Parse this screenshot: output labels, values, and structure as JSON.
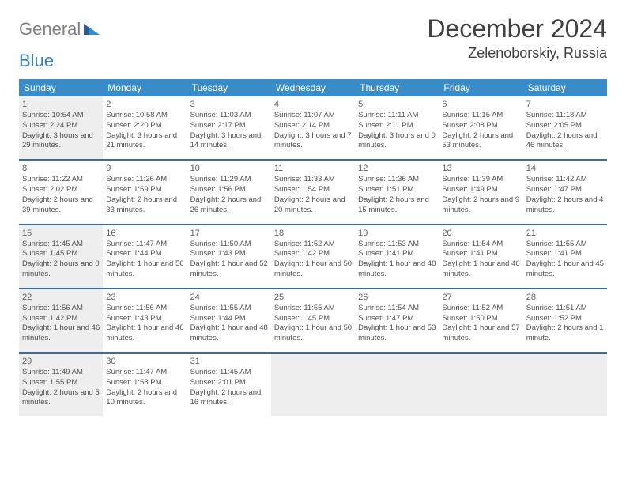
{
  "logo": {
    "general": "General",
    "blue": "Blue"
  },
  "title": "December 2024",
  "location": "Zelenoborskiy, Russia",
  "colors": {
    "header_bg": "#3a8cc9",
    "header_text": "#ffffff",
    "week_border": "#3a6a9e",
    "shaded_cell": "#eeeeee",
    "text": "#505050",
    "logo_general": "#808080",
    "logo_blue": "#3a7ec4"
  },
  "day_headers": [
    "Sunday",
    "Monday",
    "Tuesday",
    "Wednesday",
    "Thursday",
    "Friday",
    "Saturday"
  ],
  "weeks": [
    [
      {
        "n": "1",
        "shaded": true,
        "sr": "Sunrise: 10:54 AM",
        "ss": "Sunset: 2:24 PM",
        "dl": "Daylight: 3 hours and 29 minutes."
      },
      {
        "n": "2",
        "shaded": false,
        "sr": "Sunrise: 10:58 AM",
        "ss": "Sunset: 2:20 PM",
        "dl": "Daylight: 3 hours and 21 minutes."
      },
      {
        "n": "3",
        "shaded": false,
        "sr": "Sunrise: 11:03 AM",
        "ss": "Sunset: 2:17 PM",
        "dl": "Daylight: 3 hours and 14 minutes."
      },
      {
        "n": "4",
        "shaded": false,
        "sr": "Sunrise: 11:07 AM",
        "ss": "Sunset: 2:14 PM",
        "dl": "Daylight: 3 hours and 7 minutes."
      },
      {
        "n": "5",
        "shaded": false,
        "sr": "Sunrise: 11:11 AM",
        "ss": "Sunset: 2:11 PM",
        "dl": "Daylight: 3 hours and 0 minutes."
      },
      {
        "n": "6",
        "shaded": false,
        "sr": "Sunrise: 11:15 AM",
        "ss": "Sunset: 2:08 PM",
        "dl": "Daylight: 2 hours and 53 minutes."
      },
      {
        "n": "7",
        "shaded": false,
        "sr": "Sunrise: 11:18 AM",
        "ss": "Sunset: 2:05 PM",
        "dl": "Daylight: 2 hours and 46 minutes."
      }
    ],
    [
      {
        "n": "8",
        "shaded": false,
        "sr": "Sunrise: 11:22 AM",
        "ss": "Sunset: 2:02 PM",
        "dl": "Daylight: 2 hours and 39 minutes."
      },
      {
        "n": "9",
        "shaded": false,
        "sr": "Sunrise: 11:26 AM",
        "ss": "Sunset: 1:59 PM",
        "dl": "Daylight: 2 hours and 33 minutes."
      },
      {
        "n": "10",
        "shaded": false,
        "sr": "Sunrise: 11:29 AM",
        "ss": "Sunset: 1:56 PM",
        "dl": "Daylight: 2 hours and 26 minutes."
      },
      {
        "n": "11",
        "shaded": false,
        "sr": "Sunrise: 11:33 AM",
        "ss": "Sunset: 1:54 PM",
        "dl": "Daylight: 2 hours and 20 minutes."
      },
      {
        "n": "12",
        "shaded": false,
        "sr": "Sunrise: 11:36 AM",
        "ss": "Sunset: 1:51 PM",
        "dl": "Daylight: 2 hours and 15 minutes."
      },
      {
        "n": "13",
        "shaded": false,
        "sr": "Sunrise: 11:39 AM",
        "ss": "Sunset: 1:49 PM",
        "dl": "Daylight: 2 hours and 9 minutes."
      },
      {
        "n": "14",
        "shaded": false,
        "sr": "Sunrise: 11:42 AM",
        "ss": "Sunset: 1:47 PM",
        "dl": "Daylight: 2 hours and 4 minutes."
      }
    ],
    [
      {
        "n": "15",
        "shaded": true,
        "sr": "Sunrise: 11:45 AM",
        "ss": "Sunset: 1:45 PM",
        "dl": "Daylight: 2 hours and 0 minutes."
      },
      {
        "n": "16",
        "shaded": false,
        "sr": "Sunrise: 11:47 AM",
        "ss": "Sunset: 1:44 PM",
        "dl": "Daylight: 1 hour and 56 minutes."
      },
      {
        "n": "17",
        "shaded": false,
        "sr": "Sunrise: 11:50 AM",
        "ss": "Sunset: 1:43 PM",
        "dl": "Daylight: 1 hour and 52 minutes."
      },
      {
        "n": "18",
        "shaded": false,
        "sr": "Sunrise: 11:52 AM",
        "ss": "Sunset: 1:42 PM",
        "dl": "Daylight: 1 hour and 50 minutes."
      },
      {
        "n": "19",
        "shaded": false,
        "sr": "Sunrise: 11:53 AM",
        "ss": "Sunset: 1:41 PM",
        "dl": "Daylight: 1 hour and 48 minutes."
      },
      {
        "n": "20",
        "shaded": false,
        "sr": "Sunrise: 11:54 AM",
        "ss": "Sunset: 1:41 PM",
        "dl": "Daylight: 1 hour and 46 minutes."
      },
      {
        "n": "21",
        "shaded": false,
        "sr": "Sunrise: 11:55 AM",
        "ss": "Sunset: 1:41 PM",
        "dl": "Daylight: 1 hour and 45 minutes."
      }
    ],
    [
      {
        "n": "22",
        "shaded": true,
        "sr": "Sunrise: 11:56 AM",
        "ss": "Sunset: 1:42 PM",
        "dl": "Daylight: 1 hour and 46 minutes."
      },
      {
        "n": "23",
        "shaded": false,
        "sr": "Sunrise: 11:56 AM",
        "ss": "Sunset: 1:43 PM",
        "dl": "Daylight: 1 hour and 46 minutes."
      },
      {
        "n": "24",
        "shaded": false,
        "sr": "Sunrise: 11:55 AM",
        "ss": "Sunset: 1:44 PM",
        "dl": "Daylight: 1 hour and 48 minutes."
      },
      {
        "n": "25",
        "shaded": false,
        "sr": "Sunrise: 11:55 AM",
        "ss": "Sunset: 1:45 PM",
        "dl": "Daylight: 1 hour and 50 minutes."
      },
      {
        "n": "26",
        "shaded": false,
        "sr": "Sunrise: 11:54 AM",
        "ss": "Sunset: 1:47 PM",
        "dl": "Daylight: 1 hour and 53 minutes."
      },
      {
        "n": "27",
        "shaded": false,
        "sr": "Sunrise: 11:52 AM",
        "ss": "Sunset: 1:50 PM",
        "dl": "Daylight: 1 hour and 57 minutes."
      },
      {
        "n": "28",
        "shaded": false,
        "sr": "Sunrise: 11:51 AM",
        "ss": "Sunset: 1:52 PM",
        "dl": "Daylight: 2 hours and 1 minute."
      }
    ],
    [
      {
        "n": "29",
        "shaded": true,
        "sr": "Sunrise: 11:49 AM",
        "ss": "Sunset: 1:55 PM",
        "dl": "Daylight: 2 hours and 5 minutes."
      },
      {
        "n": "30",
        "shaded": false,
        "sr": "Sunrise: 11:47 AM",
        "ss": "Sunset: 1:58 PM",
        "dl": "Daylight: 2 hours and 10 minutes."
      },
      {
        "n": "31",
        "shaded": false,
        "sr": "Sunrise: 11:45 AM",
        "ss": "Sunset: 2:01 PM",
        "dl": "Daylight: 2 hours and 16 minutes."
      },
      {
        "empty": true,
        "shaded": true
      },
      {
        "empty": true,
        "shaded": true
      },
      {
        "empty": true,
        "shaded": true
      },
      {
        "empty": true,
        "shaded": true
      }
    ]
  ]
}
